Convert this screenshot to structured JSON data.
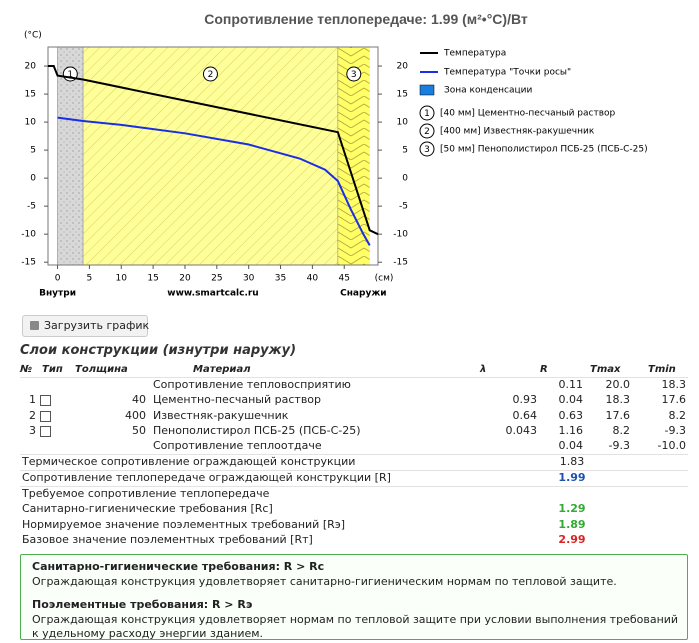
{
  "title": "Сопротивление теплопередаче: 1.99 (м²•°С)/Вт",
  "chart_data": {
    "type": "line",
    "y_label": "(°С)",
    "x_label": "(см)",
    "xlim": [
      -1.5,
      50.3
    ],
    "ylim": [
      -15.5,
      23.4
    ],
    "xticks": [
      0,
      5,
      10,
      15,
      20,
      25,
      30,
      35,
      40,
      45
    ],
    "yticks": [
      20,
      15,
      10,
      5,
      0,
      -5,
      -10,
      -15
    ],
    "annotations": [
      "Внутри",
      "www.smartcalc.ru",
      "Снаружи"
    ],
    "series": [
      {
        "name": "Температура",
        "color": "#000000",
        "x": [
          -1.5,
          -0.6,
          0,
          4,
          44,
          49,
          50.3
        ],
        "values": [
          20,
          20,
          18.3,
          17.6,
          8.2,
          -9.3,
          -10
        ]
      },
      {
        "name": "Температура \"Точки росы\"",
        "color": "#1a2ee6",
        "x": [
          0,
          4,
          10,
          20,
          30,
          38,
          42,
          44,
          46,
          48,
          49
        ],
        "values": [
          10.8,
          10.2,
          9.5,
          8,
          6,
          3.5,
          1.5,
          -0.5,
          -5.5,
          -10,
          -12
        ]
      }
    ],
    "layers": [
      {
        "label": "1",
        "name": "[40 мм] Цементно-песчаный раствор",
        "start": 0,
        "end": 4,
        "color": "#d8d8d8"
      },
      {
        "label": "2",
        "name": "[400 мм] Известняк-ракушечник",
        "start": 4,
        "end": 44,
        "color": "#ffff99"
      },
      {
        "label": "3",
        "name": "[50 мм] Пенополистирол ПСБ-25 (ПСБ-С-25)",
        "start": 44,
        "end": 49,
        "color": "#ffff66"
      }
    ],
    "condensation_zone": {
      "name": "Зона конденсации",
      "color": "#1a7de0"
    },
    "legend": "right"
  },
  "button": "Загрузить график",
  "section_title": "Слои конструкции (изнутри наружу)",
  "table": {
    "headers": [
      "№",
      "Тип",
      "Толщина",
      "Материал",
      "λ",
      "R",
      "Tmax",
      "Tmin"
    ],
    "rows": [
      {
        "material": "Сопротивление тепловосприятию",
        "r": "0.11",
        "tmax": "20.0",
        "tmin": "18.3"
      },
      {
        "no": "1",
        "thickness": "40",
        "material": "Цементно-песчаный раствор",
        "lambda": "0.93",
        "r": "0.04",
        "tmax": "18.3",
        "tmin": "17.6"
      },
      {
        "no": "2",
        "thickness": "400",
        "material": "Известняк-ракушечник",
        "lambda": "0.64",
        "r": "0.63",
        "tmax": "17.6",
        "tmin": "8.2"
      },
      {
        "no": "3",
        "thickness": "50",
        "material": "Пенополистирол ПСБ-25 (ПСБ-С-25)",
        "lambda": "0.043",
        "r": "1.16",
        "tmax": "8.2",
        "tmin": "-9.3"
      },
      {
        "material": "Сопротивление теплоотдаче",
        "r": "0.04",
        "tmax": "-9.3",
        "tmin": "-10.0"
      }
    ]
  },
  "summary": [
    {
      "label": "Термическое сопротивление ограждающей конструкции",
      "value": "1.83",
      "color": "#222222"
    },
    {
      "label": "Сопротивление теплопередаче ограждающей конструкции [R]",
      "value": "1.99",
      "color": "#1f4fb0"
    }
  ],
  "required_title": "Требуемое сопротивление теплопередаче",
  "requirements": [
    {
      "label": "Санитарно-гигиенические требования [Rc]",
      "value": "1.29",
      "color": "#33aa33"
    },
    {
      "label": "Нормируемое значение поэлементных требований [Rэ]",
      "value": "1.89",
      "color": "#33aa33"
    },
    {
      "label": "Базовое значение поэлементных требований [Rт]",
      "value": "2.99",
      "color": "#dd2222"
    }
  ],
  "conclusions": [
    {
      "heading": "Санитарно-гигиенические требования: R > Rc",
      "text": "Ограждающая конструкция удовлетворяет санитарно-гигиеническим нормам по тепловой защите."
    },
    {
      "heading": "Поэлементные требования: R > Rэ",
      "text": "Ограждающая конструкция удовлетворяет нормам по тепловой защите при условии выполнения требований к удельному расходу энергии зданием."
    }
  ]
}
